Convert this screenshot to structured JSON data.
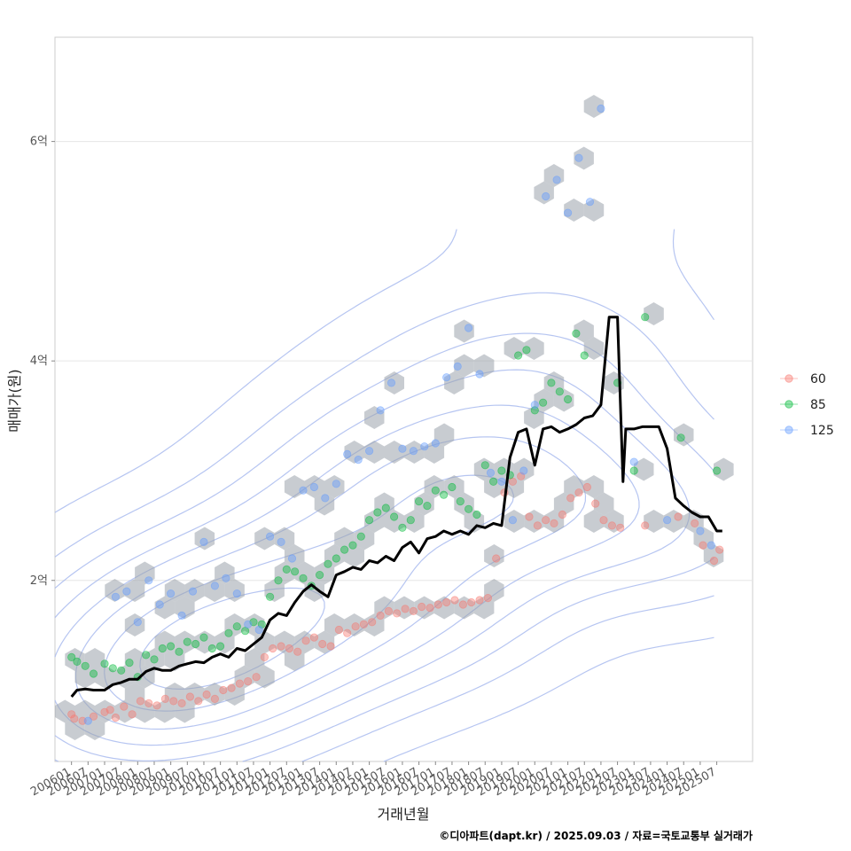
{
  "chart_data": {
    "type": "scatter",
    "xlabel": "거래년월",
    "ylabel": "매매가(원)",
    "caption": "©디아파트(dapt.kr) / 2025.09.03 / 자료=국토교통부 실거래가",
    "y_unit": "억",
    "ylim": [
      0.35,
      6.95
    ],
    "y_ticks": [
      {
        "value": 2,
        "label": "2억"
      },
      {
        "value": 4,
        "label": "4억"
      },
      {
        "value": 6,
        "label": "6억"
      }
    ],
    "xlim": [
      "2005-07",
      "2026-08"
    ],
    "x_ticks": [
      "200601",
      "200607",
      "200701",
      "200707",
      "200801",
      "200807",
      "200901",
      "200907",
      "201001",
      "201007",
      "201101",
      "201107",
      "201201",
      "201207",
      "201301",
      "201307",
      "201401",
      "201407",
      "201501",
      "201507",
      "201601",
      "201607",
      "201701",
      "201707",
      "201801",
      "201807",
      "201901",
      "201907",
      "202001",
      "202007",
      "202101",
      "202107",
      "202201",
      "202207",
      "202301",
      "202307",
      "202401",
      "202407",
      "202501",
      "202507"
    ],
    "grid": true,
    "legend": {
      "position": "right",
      "entries": [
        {
          "label": "60",
          "color": "#F8766D"
        },
        {
          "label": "85",
          "color": "#00BA38"
        },
        {
          "label": "125",
          "color": "#619CFF"
        }
      ]
    },
    "contour_color": "#A9BBEE",
    "hex_color": "#9BA3AB",
    "median_line": {
      "color": "#000000",
      "points": [
        [
          "2006-01",
          0.94
        ],
        [
          "2006-03",
          1.0
        ],
        [
          "2006-06",
          1.01
        ],
        [
          "2006-09",
          1.0
        ],
        [
          "2007-01",
          1.0
        ],
        [
          "2007-04",
          1.05
        ],
        [
          "2007-07",
          1.07
        ],
        [
          "2007-10",
          1.1
        ],
        [
          "2008-01",
          1.1
        ],
        [
          "2008-04",
          1.17
        ],
        [
          "2008-07",
          1.2
        ],
        [
          "2008-10",
          1.18
        ],
        [
          "2009-01",
          1.18
        ],
        [
          "2009-04",
          1.22
        ],
        [
          "2009-07",
          1.24
        ],
        [
          "2009-10",
          1.26
        ],
        [
          "2010-01",
          1.25
        ],
        [
          "2010-04",
          1.3
        ],
        [
          "2010-07",
          1.33
        ],
        [
          "2010-10",
          1.3
        ],
        [
          "2011-01",
          1.38
        ],
        [
          "2011-04",
          1.36
        ],
        [
          "2011-07",
          1.42
        ],
        [
          "2011-10",
          1.48
        ],
        [
          "2012-01",
          1.64
        ],
        [
          "2012-04",
          1.7
        ],
        [
          "2012-07",
          1.68
        ],
        [
          "2012-10",
          1.8
        ],
        [
          "2013-01",
          1.9
        ],
        [
          "2013-04",
          1.96
        ],
        [
          "2013-07",
          1.9
        ],
        [
          "2013-10",
          1.85
        ],
        [
          "2014-01",
          2.05
        ],
        [
          "2014-04",
          2.08
        ],
        [
          "2014-07",
          2.12
        ],
        [
          "2014-10",
          2.1
        ],
        [
          "2015-01",
          2.18
        ],
        [
          "2015-04",
          2.16
        ],
        [
          "2015-07",
          2.22
        ],
        [
          "2015-10",
          2.18
        ],
        [
          "2016-01",
          2.3
        ],
        [
          "2016-04",
          2.35
        ],
        [
          "2016-07",
          2.25
        ],
        [
          "2016-10",
          2.38
        ],
        [
          "2017-01",
          2.4
        ],
        [
          "2017-04",
          2.45
        ],
        [
          "2017-07",
          2.42
        ],
        [
          "2017-10",
          2.45
        ],
        [
          "2018-01",
          2.42
        ],
        [
          "2018-04",
          2.5
        ],
        [
          "2018-07",
          2.48
        ],
        [
          "2018-10",
          2.52
        ],
        [
          "2019-01",
          2.5
        ],
        [
          "2019-04",
          3.12
        ],
        [
          "2019-07",
          3.35
        ],
        [
          "2019-10",
          3.38
        ],
        [
          "2020-01",
          3.05
        ],
        [
          "2020-04",
          3.38
        ],
        [
          "2020-07",
          3.4
        ],
        [
          "2020-10",
          3.35
        ],
        [
          "2021-01",
          3.38
        ],
        [
          "2021-04",
          3.42
        ],
        [
          "2021-07",
          3.48
        ],
        [
          "2021-10",
          3.5
        ],
        [
          "2022-01",
          3.6
        ],
        [
          "2022-04",
          4.4
        ],
        [
          "2022-07",
          4.4
        ],
        [
          "2022-09",
          2.9
        ],
        [
          "2022-10",
          3.38
        ],
        [
          "2023-01",
          3.38
        ],
        [
          "2023-04",
          3.4
        ],
        [
          "2023-07",
          3.4
        ],
        [
          "2023-10",
          3.4
        ],
        [
          "2024-01",
          3.2
        ],
        [
          "2024-04",
          2.75
        ],
        [
          "2024-07",
          2.68
        ],
        [
          "2024-10",
          2.62
        ],
        [
          "2025-01",
          2.58
        ],
        [
          "2025-04",
          2.58
        ],
        [
          "2025-07",
          2.45
        ],
        [
          "2025-09",
          2.45
        ]
      ]
    },
    "series": [
      {
        "name": "60",
        "color": "#F8766D",
        "points": [
          [
            "2006-01",
            0.78
          ],
          [
            "2006-02",
            0.74
          ],
          [
            "2006-05",
            0.72
          ],
          [
            "2006-09",
            0.76
          ],
          [
            "2007-01",
            0.8
          ],
          [
            "2007-03",
            0.82
          ],
          [
            "2007-05",
            0.75
          ],
          [
            "2007-08",
            0.85
          ],
          [
            "2007-11",
            0.78
          ],
          [
            "2008-02",
            0.9
          ],
          [
            "2008-05",
            0.88
          ],
          [
            "2008-08",
            0.86
          ],
          [
            "2008-11",
            0.92
          ],
          [
            "2009-02",
            0.9
          ],
          [
            "2009-05",
            0.88
          ],
          [
            "2009-08",
            0.94
          ],
          [
            "2009-11",
            0.9
          ],
          [
            "2010-02",
            0.96
          ],
          [
            "2010-05",
            0.92
          ],
          [
            "2010-08",
            1.0
          ],
          [
            "2010-11",
            1.02
          ],
          [
            "2011-02",
            1.06
          ],
          [
            "2011-05",
            1.08
          ],
          [
            "2011-08",
            1.12
          ],
          [
            "2011-11",
            1.3
          ],
          [
            "2012-02",
            1.38
          ],
          [
            "2012-05",
            1.4
          ],
          [
            "2012-08",
            1.38
          ],
          [
            "2012-11",
            1.35
          ],
          [
            "2013-02",
            1.45
          ],
          [
            "2013-05",
            1.48
          ],
          [
            "2013-08",
            1.42
          ],
          [
            "2013-11",
            1.4
          ],
          [
            "2014-02",
            1.55
          ],
          [
            "2014-05",
            1.52
          ],
          [
            "2014-08",
            1.58
          ],
          [
            "2014-11",
            1.6
          ],
          [
            "2015-02",
            1.62
          ],
          [
            "2015-05",
            1.68
          ],
          [
            "2015-08",
            1.72
          ],
          [
            "2015-11",
            1.7
          ],
          [
            "2016-02",
            1.74
          ],
          [
            "2016-05",
            1.72
          ],
          [
            "2016-08",
            1.76
          ],
          [
            "2016-11",
            1.75
          ],
          [
            "2017-02",
            1.78
          ],
          [
            "2017-05",
            1.8
          ],
          [
            "2017-08",
            1.82
          ],
          [
            "2017-11",
            1.78
          ],
          [
            "2018-02",
            1.8
          ],
          [
            "2018-05",
            1.82
          ],
          [
            "2018-08",
            1.84
          ],
          [
            "2018-11",
            2.2
          ],
          [
            "2019-02",
            2.8
          ],
          [
            "2019-05",
            2.9
          ],
          [
            "2019-08",
            2.95
          ],
          [
            "2019-11",
            2.58
          ],
          [
            "2020-02",
            2.5
          ],
          [
            "2020-05",
            2.55
          ],
          [
            "2020-08",
            2.52
          ],
          [
            "2020-11",
            2.6
          ],
          [
            "2021-02",
            2.75
          ],
          [
            "2021-05",
            2.8
          ],
          [
            "2021-08",
            2.85
          ],
          [
            "2021-11",
            2.7
          ],
          [
            "2022-02",
            2.55
          ],
          [
            "2022-05",
            2.5
          ],
          [
            "2022-08",
            2.48
          ],
          [
            "2023-05",
            2.5
          ],
          [
            "2024-05",
            2.58
          ],
          [
            "2024-11",
            2.52
          ],
          [
            "2025-02",
            2.32
          ],
          [
            "2025-06",
            2.18
          ],
          [
            "2025-08",
            2.28
          ]
        ]
      },
      {
        "name": "85",
        "color": "#00BA38",
        "points": [
          [
            "2006-01",
            1.3
          ],
          [
            "2006-03",
            1.26
          ],
          [
            "2006-06",
            1.22
          ],
          [
            "2006-09",
            1.15
          ],
          [
            "2007-01",
            1.24
          ],
          [
            "2007-04",
            1.2
          ],
          [
            "2007-07",
            1.18
          ],
          [
            "2007-10",
            1.25
          ],
          [
            "2008-01",
            1.12
          ],
          [
            "2008-04",
            1.32
          ],
          [
            "2008-07",
            1.28
          ],
          [
            "2008-10",
            1.38
          ],
          [
            "2009-01",
            1.4
          ],
          [
            "2009-04",
            1.35
          ],
          [
            "2009-07",
            1.44
          ],
          [
            "2009-10",
            1.42
          ],
          [
            "2010-01",
            1.48
          ],
          [
            "2010-04",
            1.38
          ],
          [
            "2010-07",
            1.4
          ],
          [
            "2010-10",
            1.52
          ],
          [
            "2011-01",
            1.58
          ],
          [
            "2011-04",
            1.54
          ],
          [
            "2011-07",
            1.62
          ],
          [
            "2011-10",
            1.6
          ],
          [
            "2012-01",
            1.85
          ],
          [
            "2012-04",
            2.0
          ],
          [
            "2012-07",
            2.1
          ],
          [
            "2012-10",
            2.08
          ],
          [
            "2013-01",
            2.02
          ],
          [
            "2013-04",
            1.95
          ],
          [
            "2013-07",
            2.05
          ],
          [
            "2013-10",
            2.15
          ],
          [
            "2014-01",
            2.2
          ],
          [
            "2014-04",
            2.28
          ],
          [
            "2014-07",
            2.32
          ],
          [
            "2014-10",
            2.4
          ],
          [
            "2015-01",
            2.55
          ],
          [
            "2015-04",
            2.62
          ],
          [
            "2015-07",
            2.66
          ],
          [
            "2015-10",
            2.58
          ],
          [
            "2016-01",
            2.48
          ],
          [
            "2016-04",
            2.55
          ],
          [
            "2016-07",
            2.72
          ],
          [
            "2016-10",
            2.68
          ],
          [
            "2017-01",
            2.82
          ],
          [
            "2017-04",
            2.78
          ],
          [
            "2017-07",
            2.85
          ],
          [
            "2017-10",
            2.72
          ],
          [
            "2018-01",
            2.65
          ],
          [
            "2018-04",
            2.6
          ],
          [
            "2018-07",
            3.05
          ],
          [
            "2018-10",
            2.9
          ],
          [
            "2019-01",
            3.0
          ],
          [
            "2019-04",
            2.96
          ],
          [
            "2019-07",
            4.05
          ],
          [
            "2019-10",
            4.1
          ],
          [
            "2020-01",
            3.55
          ],
          [
            "2020-04",
            3.62
          ],
          [
            "2020-07",
            3.8
          ],
          [
            "2020-10",
            3.72
          ],
          [
            "2021-01",
            3.65
          ],
          [
            "2021-04",
            4.25
          ],
          [
            "2021-07",
            4.05
          ],
          [
            "2022-07",
            3.8
          ],
          [
            "2023-01",
            3.0
          ],
          [
            "2023-05",
            4.4
          ],
          [
            "2024-06",
            3.3
          ],
          [
            "2025-07",
            3.0
          ]
        ]
      },
      {
        "name": "125",
        "color": "#619CFF",
        "points": [
          [
            "2006-07",
            0.72
          ],
          [
            "2007-05",
            1.85
          ],
          [
            "2007-09",
            1.9
          ],
          [
            "2008-01",
            1.62
          ],
          [
            "2008-05",
            2.0
          ],
          [
            "2008-09",
            1.78
          ],
          [
            "2009-01",
            1.88
          ],
          [
            "2009-05",
            1.68
          ],
          [
            "2009-09",
            1.9
          ],
          [
            "2010-01",
            2.35
          ],
          [
            "2010-05",
            1.95
          ],
          [
            "2010-09",
            2.02
          ],
          [
            "2011-01",
            1.88
          ],
          [
            "2011-05",
            1.6
          ],
          [
            "2011-09",
            1.55
          ],
          [
            "2012-01",
            2.4
          ],
          [
            "2012-05",
            2.35
          ],
          [
            "2012-09",
            2.2
          ],
          [
            "2013-01",
            2.82
          ],
          [
            "2013-05",
            2.85
          ],
          [
            "2013-09",
            2.75
          ],
          [
            "2014-01",
            2.88
          ],
          [
            "2014-05",
            3.15
          ],
          [
            "2014-09",
            3.1
          ],
          [
            "2015-01",
            3.18
          ],
          [
            "2015-05",
            3.55
          ],
          [
            "2015-09",
            3.8
          ],
          [
            "2016-01",
            3.2
          ],
          [
            "2016-05",
            3.18
          ],
          [
            "2016-09",
            3.22
          ],
          [
            "2017-01",
            3.25
          ],
          [
            "2017-05",
            3.85
          ],
          [
            "2017-09",
            3.95
          ],
          [
            "2018-01",
            4.3
          ],
          [
            "2018-05",
            3.88
          ],
          [
            "2018-09",
            2.98
          ],
          [
            "2019-01",
            2.9
          ],
          [
            "2019-05",
            2.55
          ],
          [
            "2019-09",
            3.0
          ],
          [
            "2020-01",
            3.6
          ],
          [
            "2020-05",
            5.5
          ],
          [
            "2020-09",
            5.65
          ],
          [
            "2021-01",
            5.35
          ],
          [
            "2021-05",
            5.85
          ],
          [
            "2021-09",
            5.45
          ],
          [
            "2022-01",
            6.3
          ],
          [
            "2023-01",
            3.08
          ],
          [
            "2024-01",
            2.55
          ],
          [
            "2025-01",
            2.45
          ],
          [
            "2025-05",
            2.32
          ]
        ]
      }
    ]
  }
}
